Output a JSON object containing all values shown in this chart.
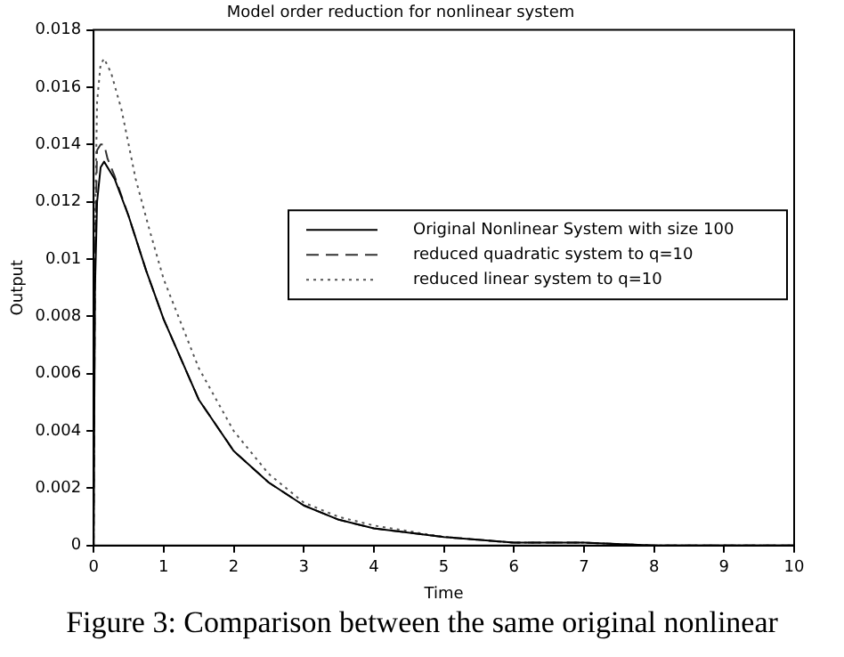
{
  "chart_data": {
    "type": "line",
    "title": "Model order reduction for nonlinear system",
    "xlabel": "Time",
    "ylabel": "Output",
    "xlim": [
      0,
      10
    ],
    "xticks": [
      0,
      1,
      2,
      3,
      4,
      5,
      6,
      7,
      8,
      9,
      10
    ],
    "ylim": [
      0,
      0.018
    ],
    "yticks": [
      0,
      0.002,
      0.004,
      0.006,
      0.008,
      0.01,
      0.012,
      0.014,
      0.016,
      0.018
    ],
    "grid": false,
    "legend": "right",
    "marker": "none",
    "series": [
      {
        "name": "Original Nonlinear System with size 100",
        "color": "#000000",
        "line_style": "solid",
        "x": [
          0,
          0.02,
          0.05,
          0.1,
          0.15,
          0.3,
          0.5,
          0.75,
          1,
          1.5,
          2,
          2.5,
          3,
          3.5,
          4,
          5,
          6,
          7,
          8,
          9,
          10
        ],
        "values": [
          0,
          0.009,
          0.012,
          0.0132,
          0.0134,
          0.0128,
          0.0115,
          0.0096,
          0.0079,
          0.0051,
          0.0033,
          0.0022,
          0.0014,
          0.0009,
          0.0006,
          0.0003,
          0.0001,
          0.0001,
          0,
          0,
          0
        ]
      },
      {
        "name": "reduced quadratic system to q=10",
        "color": "#333333",
        "line_style": "dashed",
        "x": [
          0,
          0.02,
          0.05,
          0.1,
          0.15,
          0.2,
          0.3,
          0.5,
          0.75,
          1,
          1.5,
          2,
          2.5,
          3,
          3.5,
          4,
          5,
          6,
          7,
          8,
          9,
          10
        ],
        "values": [
          0,
          0.01,
          0.0138,
          0.014,
          0.014,
          0.0135,
          0.0129,
          0.0115,
          0.0096,
          0.0079,
          0.0051,
          0.0033,
          0.0022,
          0.0014,
          0.0009,
          0.0006,
          0.0003,
          0.0001,
          0.0001,
          0,
          0,
          0
        ]
      },
      {
        "name": "reduced linear system to q=10",
        "color": "#555555",
        "line_style": "dotted",
        "x": [
          0,
          0.02,
          0.05,
          0.1,
          0.15,
          0.25,
          0.4,
          0.6,
          0.8,
          1,
          1.5,
          2,
          2.5,
          3,
          3.5,
          4,
          5,
          6,
          7,
          8,
          9,
          10
        ],
        "values": [
          0,
          0.011,
          0.0155,
          0.0168,
          0.017,
          0.0165,
          0.0152,
          0.0128,
          0.011,
          0.0093,
          0.0062,
          0.004,
          0.0025,
          0.0015,
          0.001,
          0.0007,
          0.0003,
          0.0001,
          0.0001,
          0,
          0,
          0
        ]
      }
    ],
    "annotations": [
      "Figure 3: Comparison between the same original nonlinear"
    ]
  }
}
